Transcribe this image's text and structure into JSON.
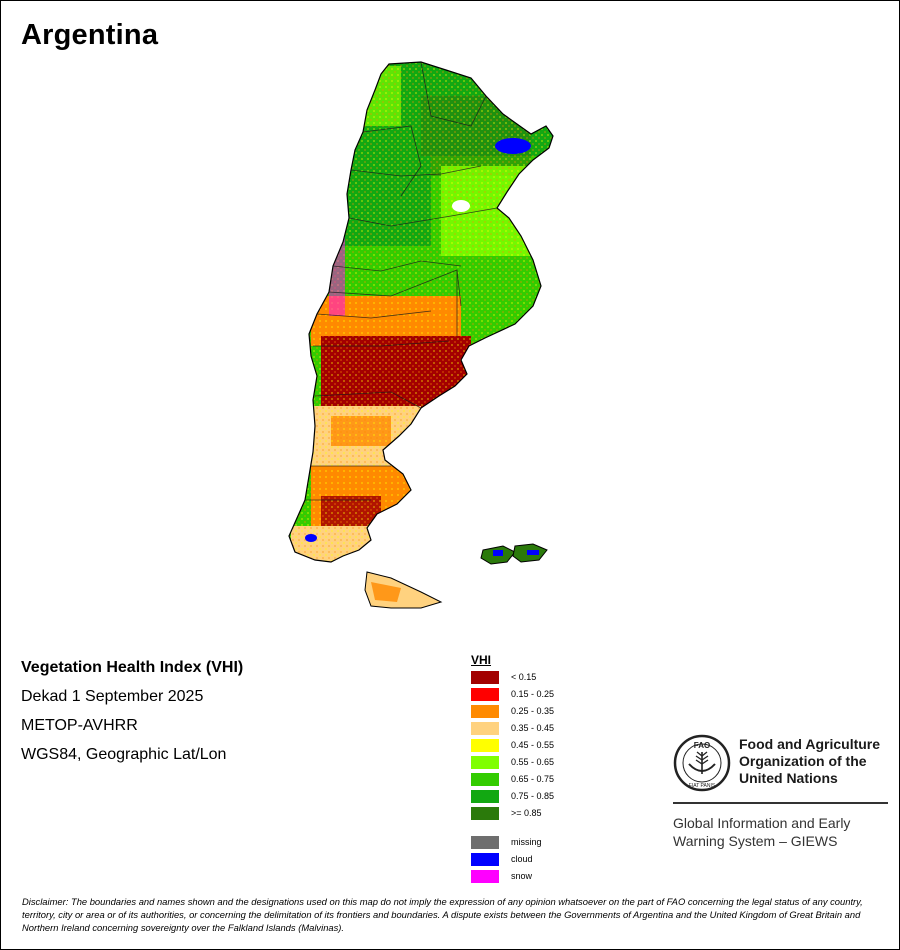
{
  "map": {
    "title": "Argentina",
    "index_name": "Vegetation Health Index (VHI)",
    "period": "Dekad 1 September 2025",
    "sensor": "METOP-AVHRR",
    "projection": "WGS84, Geographic Lat/Lon"
  },
  "legend": {
    "header": "VHI",
    "classes": [
      {
        "label": "< 0.15",
        "color": "#a30000"
      },
      {
        "label": "0.15 - 0.25",
        "color": "#ff0000"
      },
      {
        "label": "0.25 - 0.35",
        "color": "#ff8a00"
      },
      {
        "label": "0.35 - 0.45",
        "color": "#ffd27f"
      },
      {
        "label": "0.45 - 0.55",
        "color": "#ffff00"
      },
      {
        "label": "0.55 - 0.65",
        "color": "#80ff00"
      },
      {
        "label": "0.65 - 0.75",
        "color": "#33cc00"
      },
      {
        "label": "0.75 - 0.85",
        "color": "#12a812"
      },
      {
        "label": ">= 0.85",
        "color": "#2b7a0b"
      }
    ],
    "special": [
      {
        "label": "missing",
        "color": "#6e6e6e"
      },
      {
        "label": "cloud",
        "color": "#0000ff"
      },
      {
        "label": "snow",
        "color": "#ff00ff"
      }
    ]
  },
  "organization": {
    "logo_text": "FAO",
    "logo_motto": "FIAT PANIS",
    "name": "Food and Agriculture Organization of the United Nations",
    "system": "Global Information and Early Warning System – GIEWS"
  },
  "disclaimer": "Disclaimer: The boundaries and names shown and the designations used on this map do not imply the expression of any opinion whatsoever on the part of FAO concerning the legal status of any country, territory, city or area or of its authorities, or concerning the delimitation of its frontiers and boundaries. A dispute exists between the Governments of Argentina and the United Kingdom of Great Britain and Northern Ireland concerning sovereignty over the Falkland Islands (Malvinas)."
}
